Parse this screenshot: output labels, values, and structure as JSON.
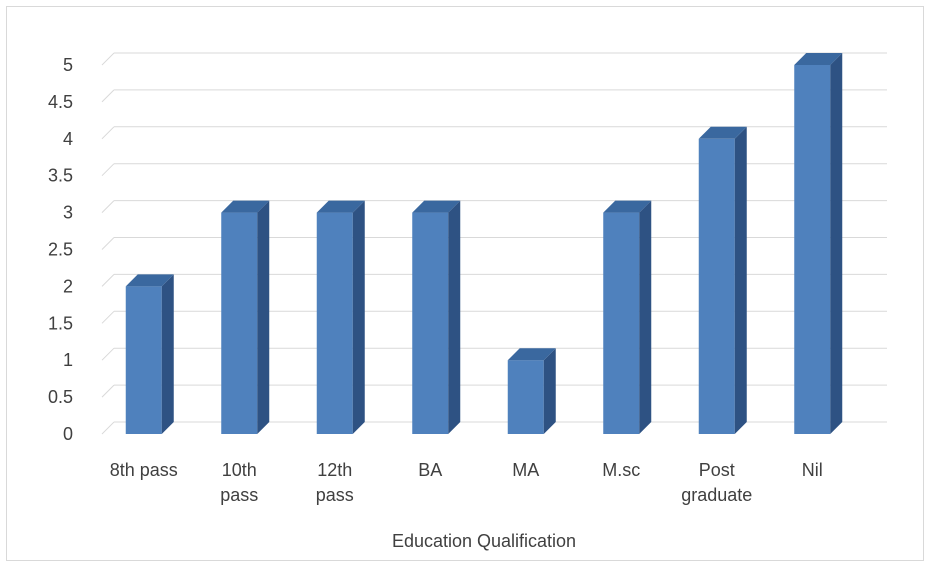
{
  "chart_data": {
    "type": "bar",
    "style": "3d-column",
    "categories": [
      [
        "8th pass"
      ],
      [
        "10th",
        "pass"
      ],
      [
        "12th",
        "pass"
      ],
      [
        "BA"
      ],
      [
        "MA"
      ],
      [
        "M.sc"
      ],
      [
        "Post",
        "graduate"
      ],
      [
        "Nil"
      ]
    ],
    "values": [
      2,
      3,
      3,
      3,
      1,
      3,
      4,
      5
    ],
    "ylim": [
      0,
      5
    ],
    "yticks": [
      "0",
      "0.5",
      "1",
      "1.5",
      "2",
      "2.5",
      "3",
      "3.5",
      "4",
      "4.5",
      "5"
    ],
    "xlabel": "Education Qualification",
    "grid": true,
    "legend": "none",
    "colors": {
      "bar_front": "#4f81bd",
      "bar_side": "#2e5283",
      "bar_top": "#3a689f",
      "grid": "#d9d9d9",
      "text": "#404040"
    }
  }
}
